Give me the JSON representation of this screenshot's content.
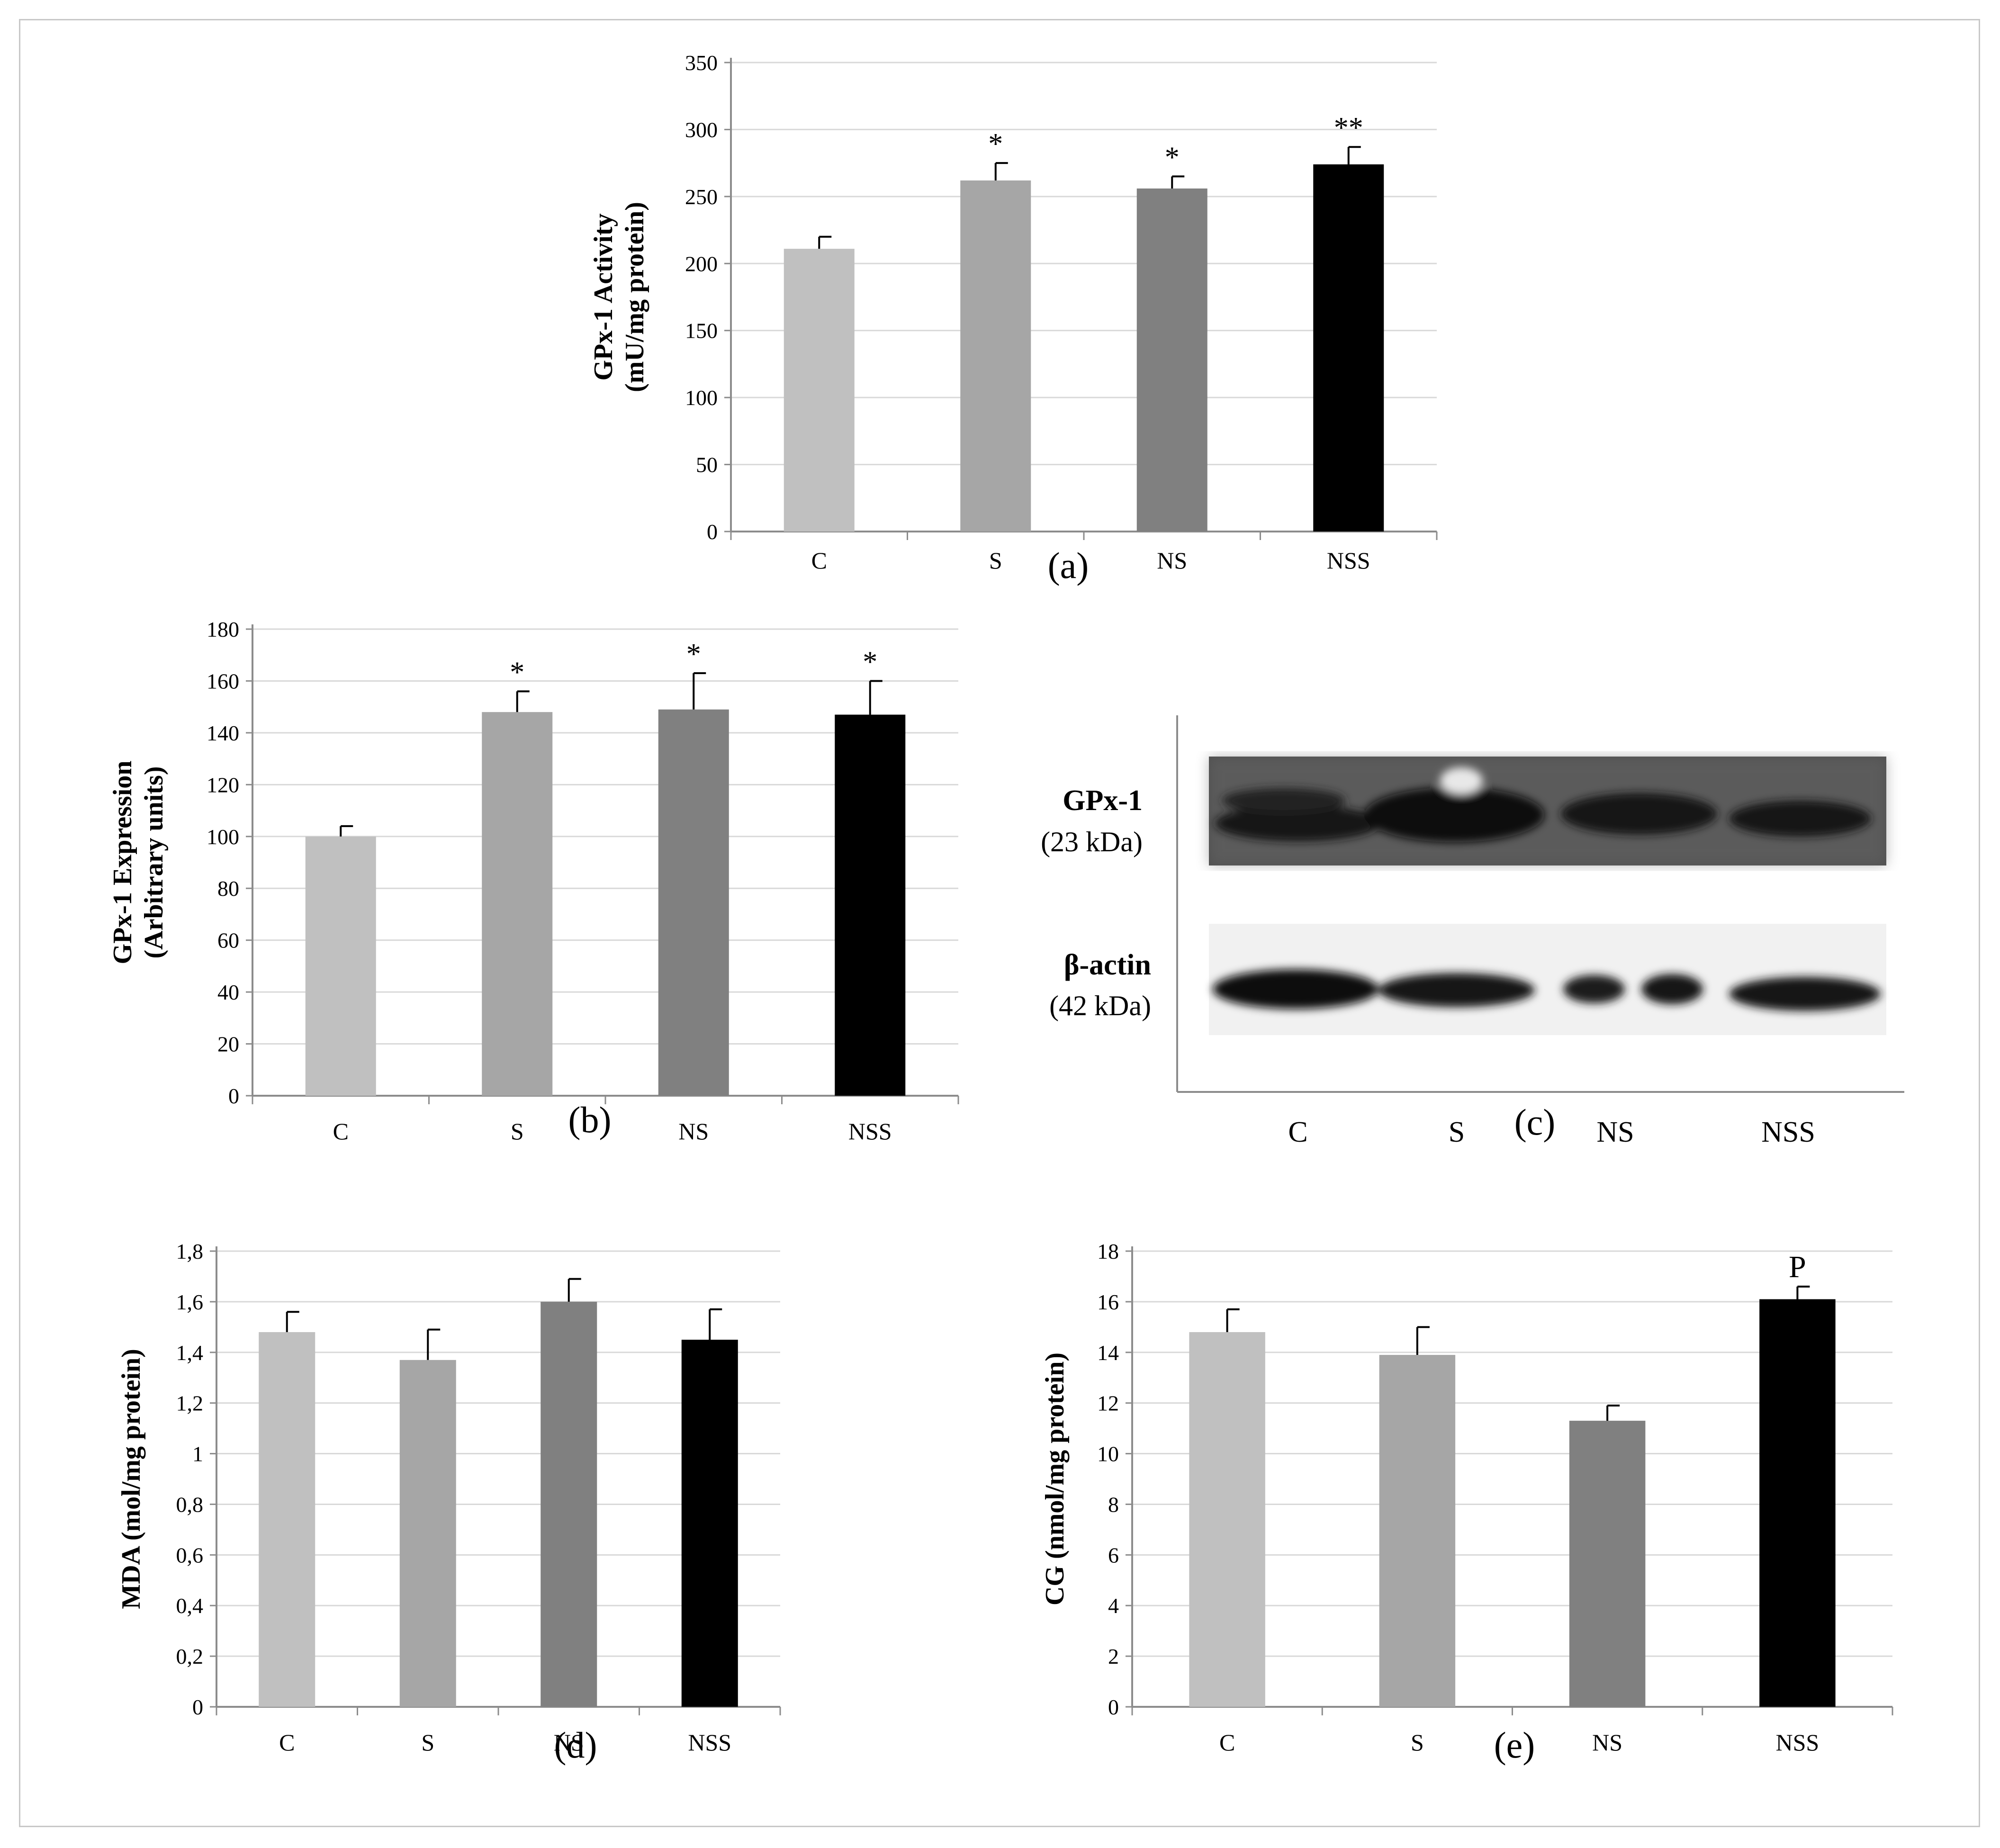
{
  "colors": {
    "C": "#c0c0c0",
    "S": "#a6a6a6",
    "NS": "#808080",
    "NSS": "#000000",
    "grid": "#d9d9d9",
    "axis": "#8c8c8c",
    "frame": "#c8c8c8"
  },
  "chart_data": [
    {
      "type": "bar",
      "panel_label": "(a)",
      "ylabel_lines": [
        "GPx-1 Activity",
        "(mU/mg protein)"
      ],
      "categories": [
        "C",
        "S",
        "NS",
        "NSS"
      ],
      "values": [
        211,
        262,
        256,
        274
      ],
      "errors": [
        9,
        13,
        9,
        13
      ],
      "annotations": [
        "",
        "*",
        "*",
        "**"
      ],
      "ylim": [
        0,
        350
      ],
      "ticks": [
        "0",
        "50",
        "100",
        "150",
        "200",
        "250",
        "300",
        "350"
      ],
      "grid": true
    },
    {
      "type": "bar",
      "panel_label": "(b)",
      "ylabel_lines": [
        "GPx-1 Expression",
        "(Arbitrary  units)"
      ],
      "categories": [
        "C",
        "S",
        "NS",
        "NSS"
      ],
      "values": [
        100,
        148,
        149,
        147
      ],
      "errors": [
        4,
        8,
        14,
        13
      ],
      "annotations": [
        "",
        "*",
        "*",
        "*"
      ],
      "ylim": [
        0,
        180
      ],
      "ticks": [
        "0",
        "20",
        "40",
        "60",
        "80",
        "100",
        "120",
        "140",
        "160",
        "180"
      ],
      "grid": true
    },
    {
      "type": "bar",
      "panel_label": "(d)",
      "ylabel_lines": [
        "MDA (mol/mg protein)"
      ],
      "categories": [
        "C",
        "S",
        "NS",
        "NSS"
      ],
      "values": [
        1.48,
        1.37,
        1.6,
        1.45
      ],
      "errors": [
        0.08,
        0.12,
        0.09,
        0.12
      ],
      "annotations": [
        "",
        "",
        "",
        ""
      ],
      "ylim": [
        0,
        1.8
      ],
      "ticks": [
        "0",
        "0,2",
        "0,4",
        "0,6",
        "0,8",
        "1",
        "1,2",
        "1,4",
        "1,6",
        "1,8"
      ],
      "grid": true
    },
    {
      "type": "bar",
      "panel_label": "(e)",
      "ylabel_lines": [
        "CG (nmol/mg protein)"
      ],
      "categories": [
        "C",
        "S",
        "NS",
        "NSS"
      ],
      "values": [
        14.8,
        13.9,
        11.3,
        16.1
      ],
      "errors": [
        0.9,
        1.1,
        0.6,
        0.5
      ],
      "annotations": [
        "",
        "",
        "",
        "P"
      ],
      "ylim": [
        0,
        18
      ],
      "ticks": [
        "0",
        "2",
        "4",
        "6",
        "8",
        "10",
        "12",
        "14",
        "16",
        "18"
      ],
      "grid": true
    }
  ],
  "blot": {
    "panel_label": "(c)",
    "rows": [
      {
        "name": "GPx-1",
        "size": "(23 kDa)"
      },
      {
        "name": "β-actin",
        "size": "(42 kDa)"
      }
    ],
    "lanes": [
      "C",
      "S",
      "NS",
      "NSS"
    ]
  }
}
